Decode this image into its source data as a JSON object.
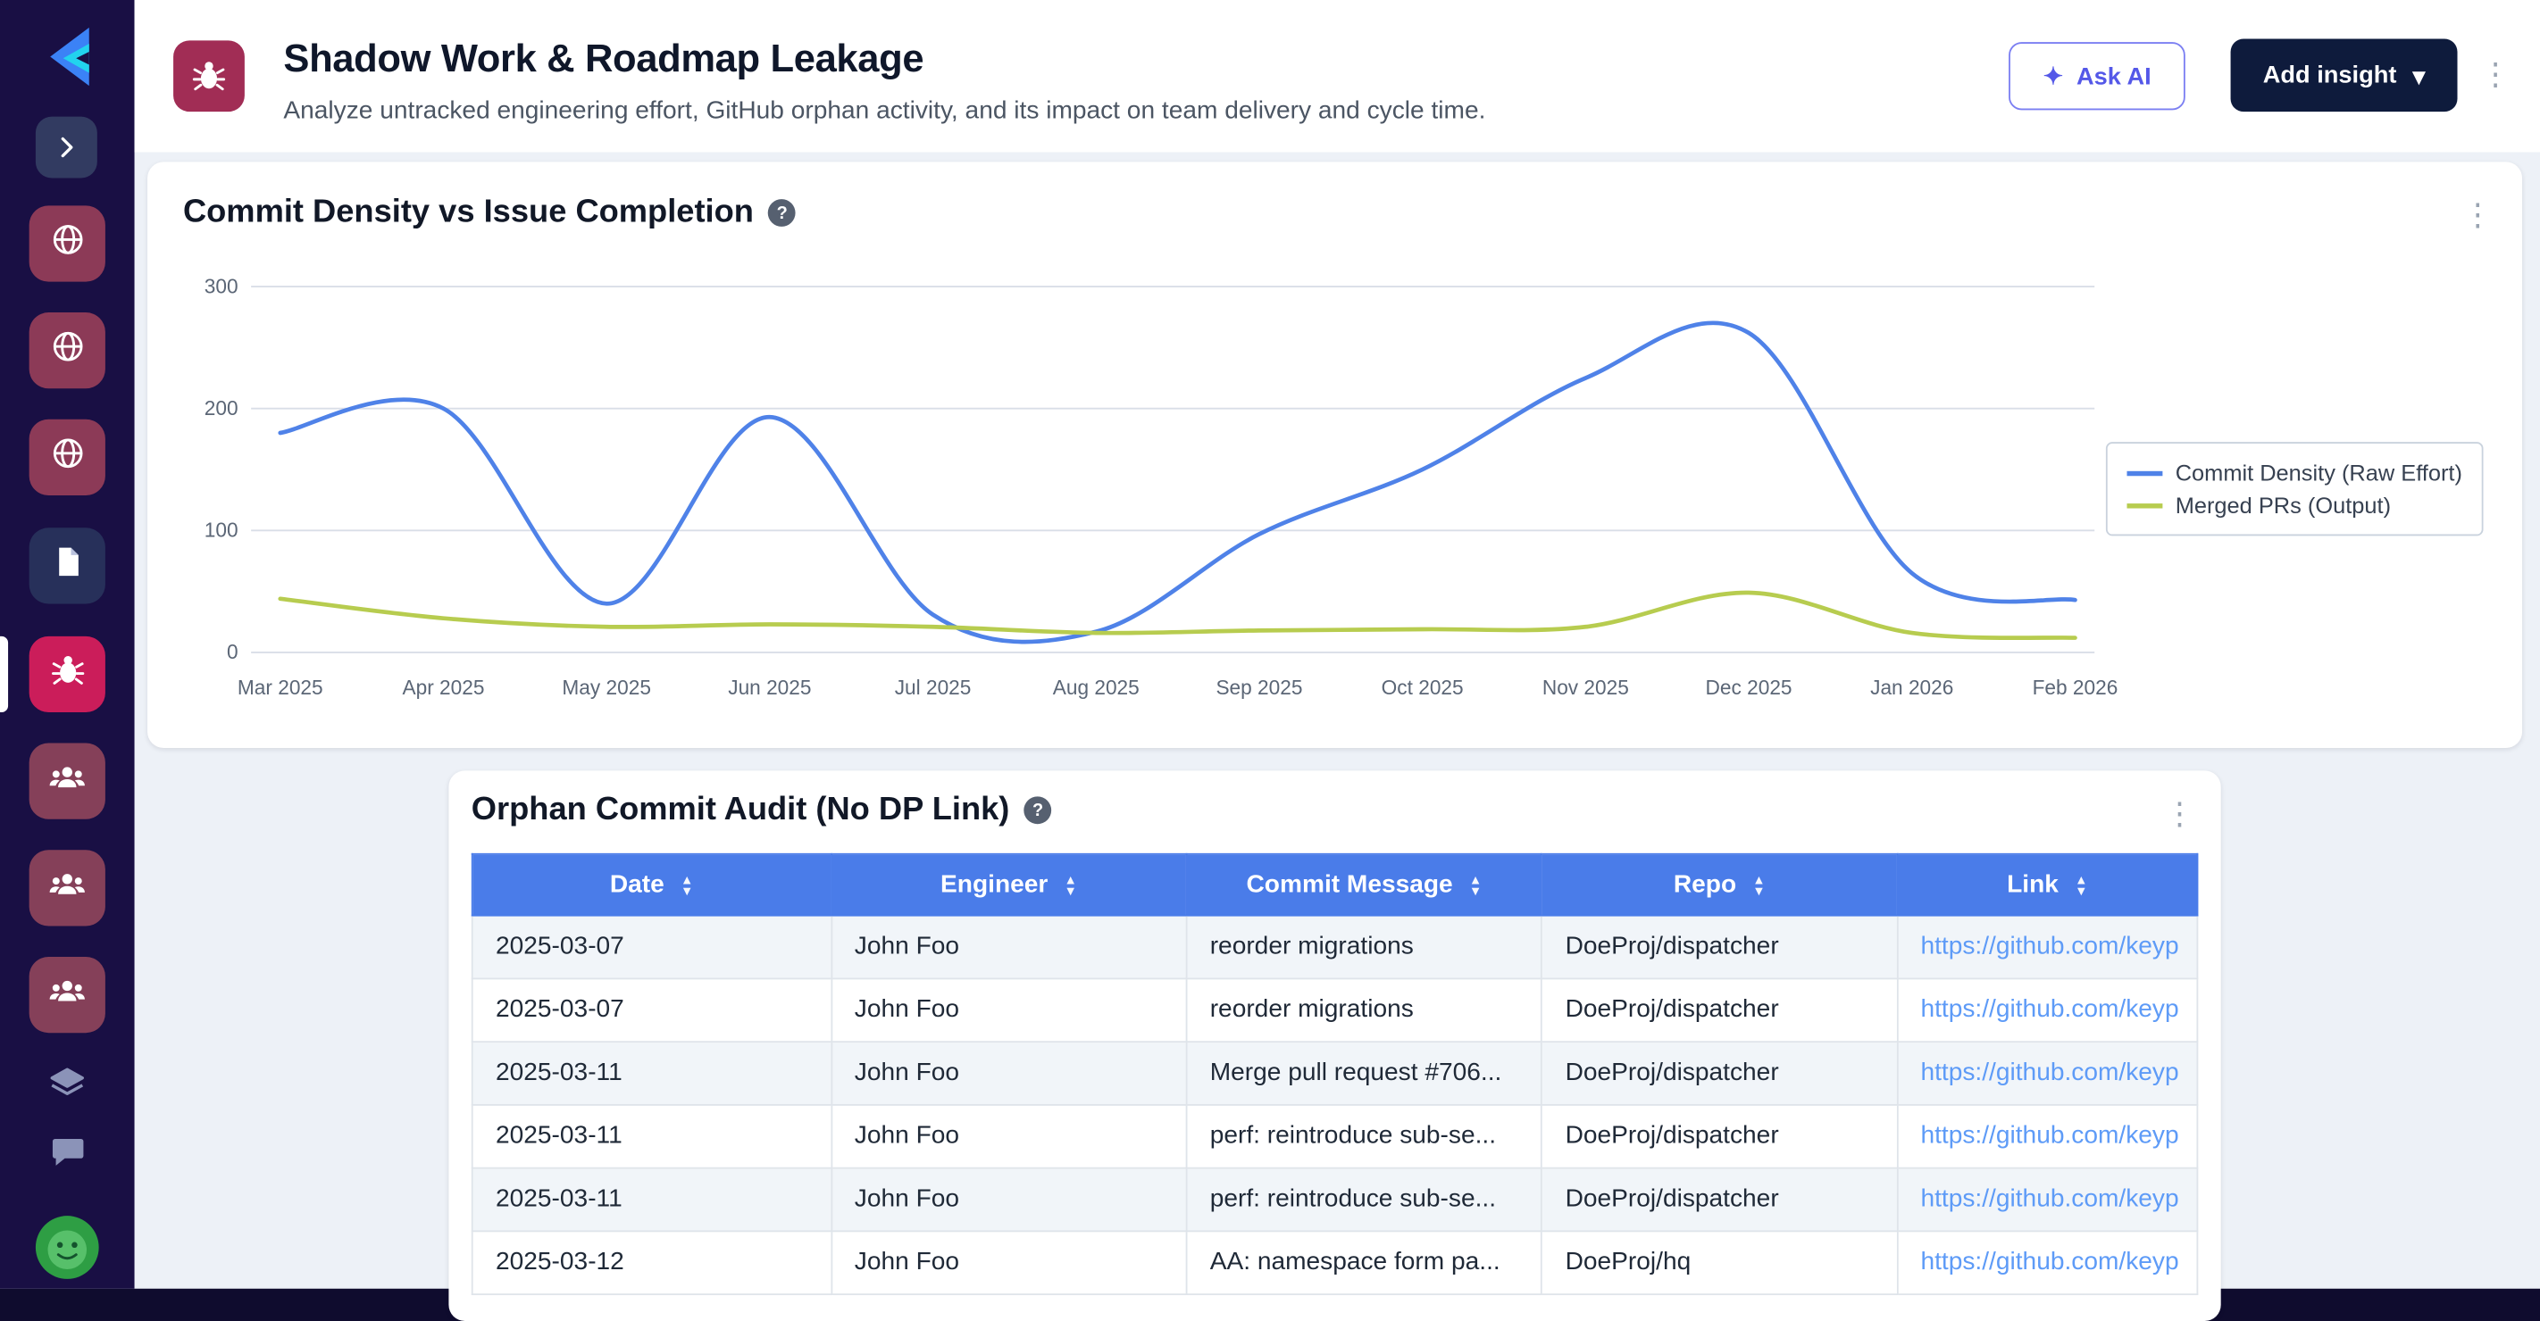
{
  "icons": {
    "help": "?",
    "kebab": "⋮",
    "sparkle": "✦",
    "caret": "▾",
    "sort_asc": "▲",
    "sort_desc": "▼"
  },
  "colors": {
    "sidebar_bg": "#190f44",
    "active_nav": "#cb1d5a",
    "rose_tile": "#8c3a57",
    "navy_tile": "#27305a",
    "users_tile": "#854059",
    "table_header": "#4a7ce9",
    "link": "#5e9bf7",
    "series_blue": "#4f82e8",
    "series_green": "#b7cc4f",
    "add_insight_bg": "#0e1b3c",
    "ask_ai_accent": "#5458e8"
  },
  "sidebar": {
    "nav_tiles": [
      {
        "icon": "globe-icon",
        "bg": "#8c3a57",
        "active": false
      },
      {
        "icon": "globe-icon",
        "bg": "#8c3a57",
        "active": false
      },
      {
        "icon": "globe-icon",
        "bg": "#8c3a57",
        "active": false
      },
      {
        "icon": "document-icon",
        "bg": "#27305a",
        "active": false
      },
      {
        "icon": "bug-icon",
        "bg": "#cb1d5a",
        "active": true
      },
      {
        "icon": "users-icon",
        "bg": "#854059",
        "active": false
      },
      {
        "icon": "users-icon",
        "bg": "#854059",
        "active": false
      },
      {
        "icon": "users-icon",
        "bg": "#854059",
        "active": false
      }
    ],
    "utility_icons": [
      "layers-icon",
      "chat-icon"
    ]
  },
  "header": {
    "title": "Shadow Work & Roadmap Leakage",
    "subtitle": "Analyze untracked engineering effort, GitHub orphan activity, and its impact on team delivery and cycle time.",
    "ask_ai_label": "Ask AI",
    "add_insight_label": "Add insight"
  },
  "chart_card": {
    "title": "Commit Density vs Issue Completion"
  },
  "chart_data": {
    "type": "line",
    "title": "Commit Density vs Issue Completion",
    "x": [
      "Mar 2025",
      "Apr 2025",
      "May 2025",
      "Jun 2025",
      "Jul 2025",
      "Aug 2025",
      "Sep 2025",
      "Oct 2025",
      "Nov 2025",
      "Dec 2025",
      "Jan 2026",
      "Feb 2026"
    ],
    "series": [
      {
        "name": "Commit Density (Raw Effort)",
        "color": "#4f82e8",
        "values": [
          180,
          200,
          40,
          193,
          31,
          17,
          97,
          150,
          225,
          262,
          65,
          43
        ]
      },
      {
        "name": "Merged PRs (Output)",
        "color": "#b7cc4f",
        "values": [
          44,
          28,
          21,
          23,
          21,
          16,
          18,
          19,
          21,
          49,
          16,
          12
        ]
      }
    ],
    "ylim": [
      0,
      300
    ],
    "yticks": [
      0,
      100,
      200,
      300
    ],
    "grid": true,
    "legend_position": "right"
  },
  "table_card": {
    "title": "Orphan Commit Audit (No DP Link)",
    "columns": [
      "Date",
      "Engineer",
      "Commit Message",
      "Repo",
      "Link"
    ],
    "rows": [
      {
        "date": "2025-03-07",
        "engineer": "John Foo",
        "message": "reorder migrations",
        "repo": "DoeProj/dispatcher",
        "link": "https://github.com/keyp"
      },
      {
        "date": "2025-03-07",
        "engineer": "John Foo",
        "message": "reorder migrations",
        "repo": "DoeProj/dispatcher",
        "link": "https://github.com/keyp"
      },
      {
        "date": "2025-03-11",
        "engineer": "John Foo",
        "message": "Merge pull request #706...",
        "repo": "DoeProj/dispatcher",
        "link": "https://github.com/keyp"
      },
      {
        "date": "2025-03-11",
        "engineer": "John Foo",
        "message": "perf: reintroduce sub-se...",
        "repo": "DoeProj/dispatcher",
        "link": "https://github.com/keyp"
      },
      {
        "date": "2025-03-11",
        "engineer": "John Foo",
        "message": "perf: reintroduce sub-se...",
        "repo": "DoeProj/dispatcher",
        "link": "https://github.com/keyp"
      },
      {
        "date": "2025-03-12",
        "engineer": "John Foo",
        "message": "AA: namespace form pa...",
        "repo": "DoeProj/hq",
        "link": "https://github.com/keyp"
      }
    ]
  }
}
